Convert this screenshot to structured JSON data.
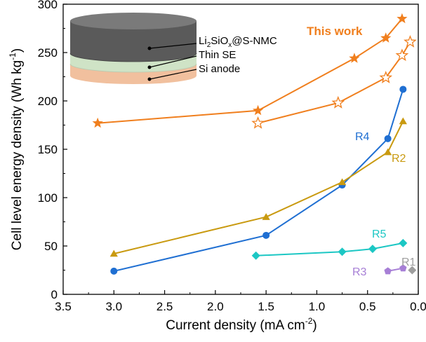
{
  "chart_data": {
    "type": "line",
    "xlabel": "Current density (mA cm",
    "xlabel_sup": "-2",
    "xlabel_end": ")",
    "ylabel": "Cell level energy density (Wh kg",
    "ylabel_sup": "-1",
    "ylabel_end": ")",
    "xlim": [
      3.5,
      0.0
    ],
    "ylim": [
      0,
      300
    ],
    "x_ticks": [
      3.5,
      3.0,
      2.5,
      2.0,
      1.5,
      1.0,
      0.5,
      0.0
    ],
    "x_tick_labels": [
      "3.5",
      "3.0",
      "2.5",
      "2.0",
      "1.5",
      "1.0",
      "0.5",
      "0.0"
    ],
    "y_ticks": [
      0,
      50,
      100,
      150,
      200,
      250,
      300
    ],
    "y_tick_labels": [
      "0",
      "50",
      "100",
      "150",
      "200",
      "250",
      "300"
    ],
    "annotation": "This work",
    "series": [
      {
        "name": "This work (filled)",
        "color": "#F07F1E",
        "marker": "star-filled",
        "points": [
          [
            3.16,
            177
          ],
          [
            1.58,
            190
          ],
          [
            0.63,
            244
          ],
          [
            0.32,
            265
          ],
          [
            0.16,
            285
          ]
        ]
      },
      {
        "name": "This work (open)",
        "color": "#F07F1E",
        "marker": "star-open",
        "points": [
          [
            1.58,
            177
          ],
          [
            0.79,
            198
          ],
          [
            0.32,
            224
          ],
          [
            0.16,
            247
          ],
          [
            0.08,
            261
          ]
        ]
      },
      {
        "name": "R4",
        "color": "#1F6FD2",
        "marker": "circle",
        "points": [
          [
            3.0,
            24
          ],
          [
            1.5,
            61
          ],
          [
            0.75,
            113
          ],
          [
            0.3,
            161
          ],
          [
            0.15,
            212
          ]
        ]
      },
      {
        "name": "R2",
        "color": "#C99A10",
        "marker": "triangle",
        "points": [
          [
            3.0,
            42
          ],
          [
            1.5,
            80
          ],
          [
            0.75,
            116
          ],
          [
            0.3,
            147
          ],
          [
            0.15,
            179
          ]
        ]
      },
      {
        "name": "R5",
        "color": "#1CC7C4",
        "marker": "diamond",
        "points": [
          [
            1.6,
            40
          ],
          [
            0.75,
            44
          ],
          [
            0.45,
            47
          ],
          [
            0.15,
            53
          ]
        ]
      },
      {
        "name": "R3",
        "color": "#A77FD6",
        "marker": "pentagon",
        "points": [
          [
            0.3,
            24
          ],
          [
            0.15,
            27
          ]
        ]
      },
      {
        "name": "R1",
        "color": "#9E9E9E",
        "marker": "diamond",
        "points": [
          [
            0.06,
            25
          ]
        ]
      }
    ],
    "series_labels": [
      "R4",
      "R2",
      "R5",
      "R3",
      "R1"
    ],
    "inset": {
      "layers": [
        "Li2SiOx@S-NMC",
        "Thin SE",
        "Si anode"
      ],
      "label_cathode": {
        "a": "Li",
        "b": "2",
        "c": "SiO",
        "d": "x",
        "e": "@S-NMC"
      },
      "label_se": "Thin SE",
      "label_anode": "Si anode",
      "colors": {
        "cathode": "#5A5A5A",
        "se": "#CFE3C6",
        "anode": "#F1C09E"
      }
    }
  }
}
